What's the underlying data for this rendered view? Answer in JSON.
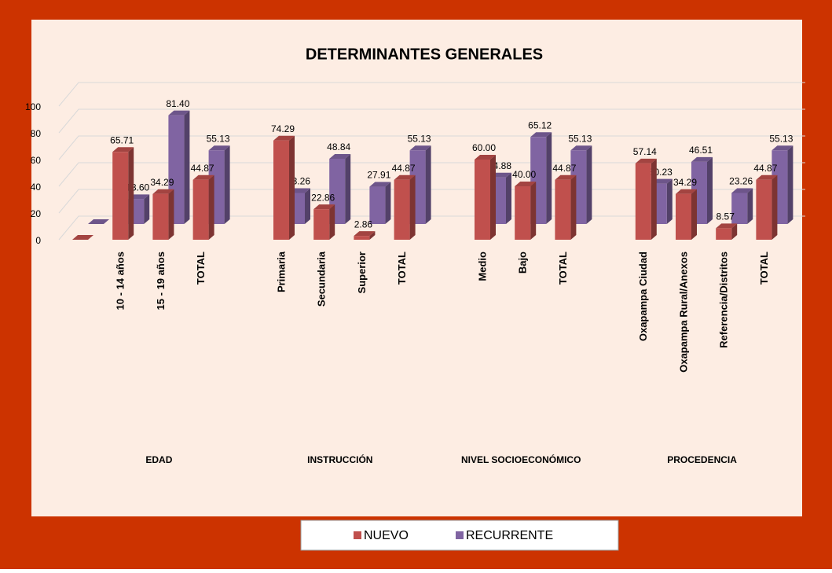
{
  "chart_data": {
    "type": "bar3d",
    "title": "DETERMINANTES GENERALES",
    "categories": [
      null,
      "10 - 14 años",
      "15 - 19 años",
      "TOTAL",
      null,
      "Primaria",
      "Secundaria",
      "Superior",
      "TOTAL",
      null,
      "Medio",
      "Bajo",
      "TOTAL",
      null,
      "Oxapampa Ciudad",
      "Oxapampa Rural/Anexos",
      "Referencia/Distritos",
      "TOTAL"
    ],
    "groups": [
      "EDAD",
      "INSTRUCCIÓN",
      "NIVEL SOCIOECONÓMICO",
      "PROCEDENCIA"
    ],
    "series": [
      {
        "name": "NUEVO",
        "color": "#c0504d",
        "values": [
          0,
          65.71,
          34.29,
          44.87,
          null,
          74.29,
          22.86,
          2.86,
          44.87,
          null,
          60.0,
          40.0,
          44.87,
          null,
          57.14,
          34.29,
          8.57,
          44.87
        ],
        "value_labels": [
          null,
          "65.71",
          "34.29",
          "44.87",
          null,
          "74.29",
          "22.86",
          "2.86",
          "44.87",
          null,
          "60.00",
          "40.00",
          "44.87",
          null,
          "57.14",
          "34.29",
          "8.57",
          "44.87"
        ]
      },
      {
        "name": "RECURRENTE",
        "color": "#8064a2",
        "values": [
          0,
          18.6,
          81.4,
          55.13,
          null,
          23.26,
          48.84,
          27.91,
          55.13,
          null,
          34.88,
          65.12,
          55.13,
          null,
          30.23,
          46.51,
          23.26,
          55.13
        ],
        "value_labels": [
          null,
          "18.60",
          "81.40",
          "55.13",
          null,
          "23.26",
          "48.84",
          "27.91",
          "55.13",
          null,
          "34.88",
          "65.12",
          "55.13",
          null,
          "30.23",
          "46.51",
          "23.26",
          "55.13"
        ]
      }
    ],
    "ylim": [
      0,
      100
    ],
    "yticks": [
      0,
      20,
      40,
      60,
      80,
      100
    ],
    "grid": true
  }
}
